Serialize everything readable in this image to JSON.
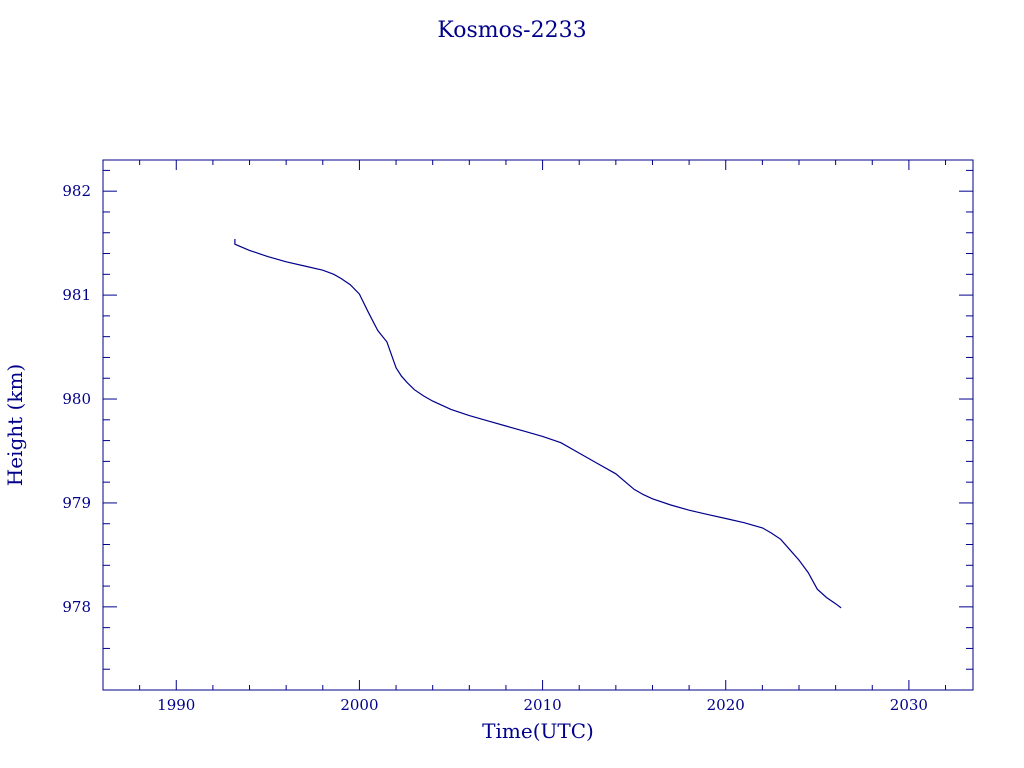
{
  "chart_data": {
    "type": "line",
    "title": "Kosmos-2233",
    "xlabel": "Time(UTC)",
    "ylabel": "Height (km)",
    "xlim": [
      1986,
      2033.5
    ],
    "ylim": [
      977.2,
      982.3
    ],
    "x_ticks": [
      1990,
      2000,
      2010,
      2020,
      2030
    ],
    "x_tick_labels": [
      "1990",
      "2000",
      "2010",
      "2020",
      "2030"
    ],
    "y_ticks": [
      978,
      979,
      980,
      981,
      982
    ],
    "y_tick_labels": [
      "978",
      "979",
      "980",
      "981",
      "982"
    ],
    "grid": false,
    "legend": "none",
    "colors": {
      "line": "#00008b",
      "frame": "#00008b",
      "text": "#00008b"
    },
    "series": [
      {
        "x": [
          1993.2,
          1993.2,
          1994.0,
          1995.0,
          1996.0,
          1997.0,
          1998.0,
          1998.6,
          1999.0,
          1999.5,
          2000.0,
          2000.5,
          2001.0,
          2001.5,
          2002.0,
          2002.3,
          2002.6,
          2003.0,
          2003.5,
          2004.0,
          2005.0,
          2006.0,
          2007.0,
          2008.0,
          2009.0,
          2010.0,
          2011.0,
          2012.0,
          2013.0,
          2014.0,
          2015.0,
          2015.5,
          2016.0,
          2017.0,
          2018.0,
          2019.0,
          2020.0,
          2021.0,
          2022.0,
          2022.5,
          2023.0,
          2023.5,
          2024.0,
          2024.5,
          2025.0,
          2025.5,
          2026.0,
          2026.3
        ],
        "y": [
          981.54,
          981.49,
          981.43,
          981.37,
          981.32,
          981.28,
          981.24,
          981.2,
          981.16,
          981.1,
          981.01,
          980.83,
          980.66,
          980.55,
          980.3,
          980.22,
          980.16,
          980.09,
          980.03,
          979.98,
          979.9,
          979.84,
          979.79,
          979.74,
          979.69,
          979.64,
          979.58,
          979.48,
          979.38,
          979.28,
          979.13,
          979.08,
          979.04,
          978.98,
          978.93,
          978.89,
          978.85,
          978.81,
          978.76,
          978.71,
          978.65,
          978.55,
          978.45,
          978.33,
          978.17,
          978.09,
          978.03,
          977.99
        ]
      }
    ]
  }
}
